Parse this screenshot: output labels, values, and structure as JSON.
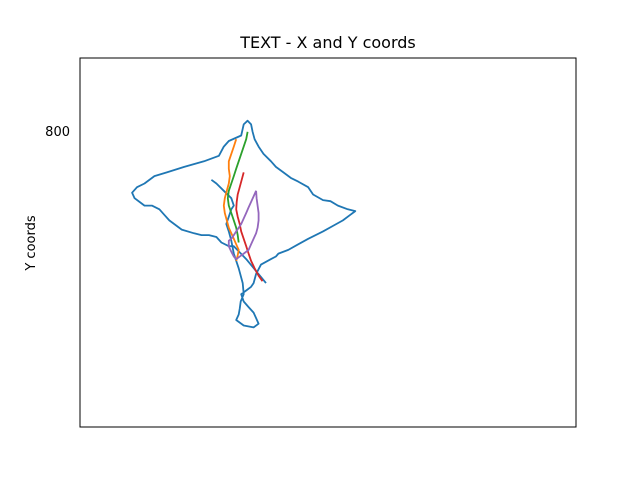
{
  "chart_data": {
    "type": "line",
    "title": "TEXT - X and Y coords",
    "xlabel": "",
    "ylabel": "Y coords",
    "y_ticks": [
      800
    ],
    "series_colors": [
      "#1f77b4",
      "#ff7f0e",
      "#2ca02c",
      "#d62728",
      "#9467bd"
    ],
    "xlim": [
      0,
      1000
    ],
    "ylim": [
      0,
      1000
    ],
    "series": [
      {
        "points": [
          [
            375,
            390
          ],
          [
            335,
            455
          ],
          [
            310,
            490
          ],
          [
            300,
            490
          ],
          [
            285,
            500
          ],
          [
            275,
            515
          ],
          [
            260,
            520
          ],
          [
            245,
            520
          ],
          [
            230,
            525
          ],
          [
            205,
            535
          ],
          [
            180,
            560
          ],
          [
            170,
            575
          ],
          [
            160,
            590
          ],
          [
            145,
            600
          ],
          [
            130,
            600
          ],
          [
            120,
            610
          ],
          [
            110,
            620
          ],
          [
            105,
            635
          ],
          [
            115,
            650
          ],
          [
            130,
            660
          ],
          [
            150,
            680
          ],
          [
            175,
            690
          ],
          [
            210,
            705
          ],
          [
            250,
            720
          ],
          [
            280,
            735
          ],
          [
            290,
            760
          ],
          [
            300,
            775
          ],
          [
            325,
            790
          ],
          [
            330,
            820
          ],
          [
            338,
            830
          ],
          [
            345,
            820
          ],
          [
            348,
            800
          ],
          [
            352,
            780
          ],
          [
            360,
            760
          ],
          [
            370,
            740
          ],
          [
            385,
            720
          ],
          [
            395,
            705
          ],
          [
            410,
            690
          ],
          [
            425,
            675
          ],
          [
            440,
            665
          ],
          [
            460,
            650
          ],
          [
            470,
            630
          ],
          [
            490,
            615
          ],
          [
            505,
            612
          ],
          [
            520,
            600
          ],
          [
            540,
            590
          ],
          [
            555,
            585
          ],
          [
            545,
            575
          ],
          [
            530,
            560
          ],
          [
            510,
            545
          ],
          [
            490,
            530
          ],
          [
            460,
            510
          ],
          [
            440,
            495
          ],
          [
            420,
            480
          ],
          [
            400,
            470
          ],
          [
            395,
            462
          ],
          [
            385,
            455
          ],
          [
            365,
            440
          ],
          [
            355,
            415
          ],
          [
            350,
            390
          ],
          [
            345,
            380
          ],
          [
            335,
            370
          ],
          [
            325,
            360
          ],
          [
            330,
            340
          ],
          [
            340,
            325
          ],
          [
            350,
            310
          ],
          [
            355,
            295
          ],
          [
            360,
            280
          ],
          [
            350,
            270
          ],
          [
            330,
            275
          ],
          [
            315,
            290
          ],
          [
            320,
            305
          ],
          [
            322,
            320
          ],
          [
            324,
            340
          ],
          [
            330,
            360
          ],
          [
            328,
            390
          ],
          [
            320,
            430
          ],
          [
            310,
            470
          ],
          [
            305,
            505
          ],
          [
            300,
            530
          ],
          [
            295,
            550
          ],
          [
            300,
            570
          ],
          [
            305,
            590
          ],
          [
            310,
            600
          ],
          [
            305,
            620
          ],
          [
            290,
            640
          ],
          [
            275,
            660
          ],
          [
            265,
            670
          ]
        ]
      },
      {
        "points": [
          [
            315,
            780
          ],
          [
            310,
            760
          ],
          [
            305,
            740
          ],
          [
            300,
            720
          ],
          [
            300,
            700
          ],
          [
            302,
            680
          ],
          [
            300,
            660
          ],
          [
            296,
            640
          ],
          [
            292,
            620
          ],
          [
            290,
            600
          ],
          [
            292,
            580
          ],
          [
            296,
            560
          ],
          [
            300,
            540
          ],
          [
            305,
            525
          ],
          [
            310,
            510
          ],
          [
            315,
            495
          ],
          [
            320,
            480
          ],
          [
            318,
            465
          ],
          [
            315,
            450
          ]
        ]
      },
      {
        "points": [
          [
            338,
            800
          ],
          [
            335,
            780
          ],
          [
            330,
            760
          ],
          [
            325,
            740
          ],
          [
            320,
            720
          ],
          [
            315,
            700
          ],
          [
            310,
            680
          ],
          [
            305,
            660
          ],
          [
            300,
            640
          ],
          [
            298,
            620
          ],
          [
            300,
            600
          ],
          [
            305,
            580
          ],
          [
            310,
            560
          ],
          [
            315,
            540
          ],
          [
            318,
            520
          ],
          [
            320,
            500
          ]
        ]
      },
      {
        "points": [
          [
            330,
            690
          ],
          [
            326,
            670
          ],
          [
            322,
            650
          ],
          [
            318,
            630
          ],
          [
            316,
            610
          ],
          [
            315,
            590
          ],
          [
            318,
            570
          ],
          [
            322,
            550
          ],
          [
            325,
            530
          ],
          [
            330,
            510
          ],
          [
            335,
            490
          ],
          [
            340,
            470
          ],
          [
            345,
            450
          ],
          [
            352,
            430
          ],
          [
            360,
            410
          ],
          [
            368,
            395
          ]
        ]
      },
      {
        "points": [
          [
            355,
            640
          ],
          [
            350,
            625
          ],
          [
            345,
            610
          ],
          [
            340,
            595
          ],
          [
            335,
            580
          ],
          [
            330,
            565
          ],
          [
            325,
            550
          ],
          [
            320,
            540
          ],
          [
            315,
            530
          ],
          [
            310,
            520
          ],
          [
            305,
            510
          ],
          [
            300,
            505
          ],
          [
            300,
            490
          ],
          [
            305,
            475
          ],
          [
            310,
            462
          ],
          [
            315,
            455
          ],
          [
            320,
            460
          ],
          [
            330,
            470
          ],
          [
            340,
            480
          ],
          [
            345,
            495
          ],
          [
            350,
            510
          ],
          [
            355,
            525
          ],
          [
            358,
            540
          ],
          [
            360,
            560
          ],
          [
            360,
            580
          ],
          [
            358,
            600
          ],
          [
            356,
            620
          ],
          [
            355,
            640
          ]
        ]
      }
    ]
  }
}
